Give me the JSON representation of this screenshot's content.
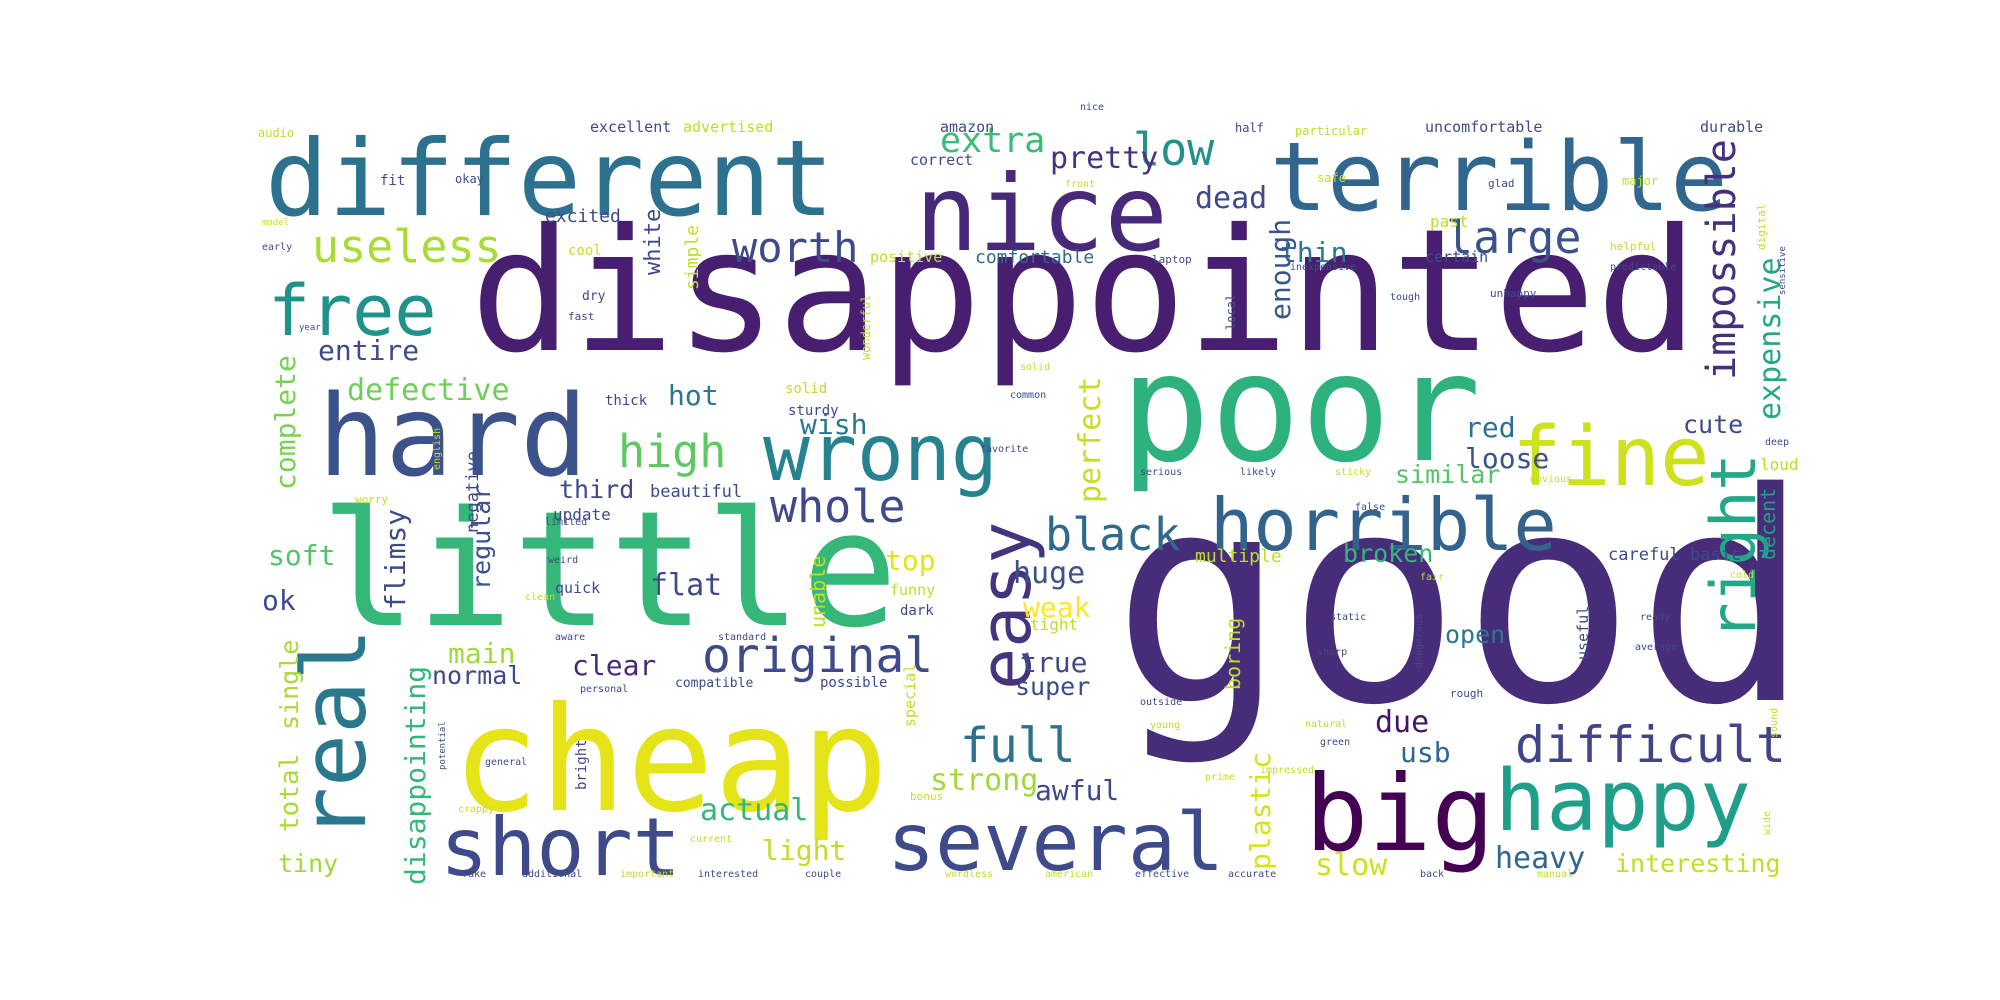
{
  "words": [
    {
      "text": "good",
      "color": "#472c7a"
    },
    {
      "text": "disappointed",
      "color": "#481f70"
    },
    {
      "text": "little",
      "color": "#35b779"
    },
    {
      "text": "poor",
      "color": "#2db27d"
    },
    {
      "text": "cheap",
      "color": "#e5e419"
    },
    {
      "text": "different",
      "color": "#2c728e"
    },
    {
      "text": "terrible",
      "color": "#31668e"
    },
    {
      "text": "nice",
      "color": "#482878"
    },
    {
      "text": "hard",
      "color": "#3b528b"
    },
    {
      "text": "big",
      "color": "#440154"
    },
    {
      "text": "happy",
      "color": "#1f9e89"
    },
    {
      "text": "several",
      "color": "#3e4a89"
    },
    {
      "text": "short",
      "color": "#3e4a89"
    },
    {
      "text": "real",
      "color": "#2a788e"
    },
    {
      "text": "wrong",
      "color": "#26828e"
    },
    {
      "text": "fine",
      "color": "#cde11d"
    },
    {
      "text": "horrible",
      "color": "#33638d"
    },
    {
      "text": "right",
      "color": "#22a884"
    },
    {
      "text": "easy",
      "color": "#46337e"
    },
    {
      "text": "free",
      "color": "#21918c"
    },
    {
      "text": "useless",
      "color": "#a8db34"
    },
    {
      "text": "worth",
      "color": "#3e4a89"
    },
    {
      "text": "large",
      "color": "#3b528b"
    },
    {
      "text": "low",
      "color": "#21918c"
    },
    {
      "text": "difficult",
      "color": "#414487"
    },
    {
      "text": "original",
      "color": "#3e4a89"
    },
    {
      "text": "black",
      "color": "#30698e"
    },
    {
      "text": "whole",
      "color": "#3e4a89"
    },
    {
      "text": "full",
      "color": "#2c728e"
    },
    {
      "text": "high",
      "color": "#5ec962"
    },
    {
      "text": "extra",
      "color": "#3bbb75"
    },
    {
      "text": "pretty",
      "color": "#46327e"
    },
    {
      "text": "dead",
      "color": "#3e4a89"
    },
    {
      "text": "thin",
      "color": "#2a788e"
    },
    {
      "text": "enough",
      "color": "#39558c"
    },
    {
      "text": "impossible",
      "color": "#46307e"
    },
    {
      "text": "expensive",
      "color": "#22a884"
    },
    {
      "text": "entire",
      "color": "#3e4a89"
    },
    {
      "text": "defective",
      "color": "#6ece58"
    },
    {
      "text": "complete",
      "color": "#7ad151"
    },
    {
      "text": "hot",
      "color": "#2a788e"
    },
    {
      "text": "wish",
      "color": "#2a788e"
    },
    {
      "text": "perfect",
      "color": "#c2df23"
    },
    {
      "text": "red",
      "color": "#2c728e"
    },
    {
      "text": "loose",
      "color": "#3b528b"
    },
    {
      "text": "similar",
      "color": "#52c569"
    },
    {
      "text": "regular",
      "color": "#3b528b"
    },
    {
      "text": "third",
      "color": "#3e4a89"
    },
    {
      "text": "huge",
      "color": "#3b528b"
    },
    {
      "text": "top",
      "color": "#e5e419"
    },
    {
      "text": "weak",
      "color": "#fde725"
    },
    {
      "text": "flat",
      "color": "#3e4a89"
    },
    {
      "text": "flimsy",
      "color": "#3e4a89"
    },
    {
      "text": "soft",
      "color": "#52c569"
    },
    {
      "text": "ok",
      "color": "#3e4a89"
    },
    {
      "text": "clear",
      "color": "#482878"
    },
    {
      "text": "main",
      "color": "#a0da39"
    },
    {
      "text": "normal",
      "color": "#3e4a89"
    },
    {
      "text": "true",
      "color": "#3e4a89"
    },
    {
      "text": "super",
      "color": "#3e4a89"
    },
    {
      "text": "due",
      "color": "#471365"
    },
    {
      "text": "usb",
      "color": "#31668e"
    },
    {
      "text": "strong",
      "color": "#a0da39"
    },
    {
      "text": "awful",
      "color": "#3e4a89"
    },
    {
      "text": "actual",
      "color": "#35b779"
    },
    {
      "text": "light",
      "color": "#bddf26"
    },
    {
      "text": "heavy",
      "color": "#31668e"
    },
    {
      "text": "slow",
      "color": "#cde11d"
    },
    {
      "text": "plastic",
      "color": "#d8e219"
    },
    {
      "text": "interesting",
      "color": "#bddf26"
    },
    {
      "text": "total",
      "color": "#a8db34"
    },
    {
      "text": "single",
      "color": "#a8db34"
    },
    {
      "text": "tiny",
      "color": "#a0da39"
    },
    {
      "text": "disappointing",
      "color": "#35b779"
    },
    {
      "text": "open",
      "color": "#2a788e"
    },
    {
      "text": "cute",
      "color": "#3e4a89"
    },
    {
      "text": "broken",
      "color": "#35b779"
    },
    {
      "text": "decent",
      "color": "#1f9e89"
    },
    {
      "text": "boring",
      "color": "#bddf26"
    },
    {
      "text": "white",
      "color": "#3e4a89"
    },
    {
      "text": "excited",
      "color": "#3e4a89"
    },
    {
      "text": "simple",
      "color": "#bddf26"
    },
    {
      "text": "comfortable",
      "color": "#31688e"
    },
    {
      "text": "advertised",
      "color": "#bddf26"
    },
    {
      "text": "excellent",
      "color": "#3e4a89"
    },
    {
      "text": "amazon",
      "color": "#3e4a89"
    },
    {
      "text": "correct",
      "color": "#3e4a89"
    },
    {
      "text": "uncomfortable",
      "color": "#3e4a89"
    },
    {
      "text": "durable",
      "color": "#3e4a89"
    },
    {
      "text": "past",
      "color": "#bddf26"
    },
    {
      "text": "certain",
      "color": "#3e4a89"
    },
    {
      "text": "careful",
      "color": "#3e4a89"
    },
    {
      "text": "basic",
      "color": "#3e4a89"
    },
    {
      "text": "multiple",
      "color": "#bddf26"
    },
    {
      "text": "negative",
      "color": "#3e4a89"
    },
    {
      "text": "beautiful",
      "color": "#3e4a89"
    },
    {
      "text": "update",
      "color": "#3e4a89"
    },
    {
      "text": "quick",
      "color": "#3e4a89"
    },
    {
      "text": "unable",
      "color": "#bddf26"
    },
    {
      "text": "funny",
      "color": "#bddf26"
    },
    {
      "text": "tight",
      "color": "#bddf26"
    },
    {
      "text": "dark",
      "color": "#3e4a89"
    },
    {
      "text": "compatible",
      "color": "#3e4a89"
    },
    {
      "text": "possible",
      "color": "#3e4a89"
    },
    {
      "text": "special",
      "color": "#bddf26"
    },
    {
      "text": "bright",
      "color": "#3e4a89"
    },
    {
      "text": "loud",
      "color": "#bddf26"
    },
    {
      "text": "useful",
      "color": "#3e4a89"
    },
    {
      "text": "positive",
      "color": "#bddf26"
    },
    {
      "text": "sturdy",
      "color": "#3e4a89"
    },
    {
      "text": "solid",
      "color": "#bddf26"
    },
    {
      "text": "thick",
      "color": "#3e4a89"
    },
    {
      "text": "cool",
      "color": "#bddf26"
    },
    {
      "text": "laptop",
      "color": "#3e4a89"
    },
    {
      "text": "local",
      "color": "#3e4a89"
    },
    {
      "text": "fit",
      "color": "#3e4a89"
    },
    {
      "text": "okay",
      "color": "#3e4a89"
    },
    {
      "text": "half",
      "color": "#3e4a89"
    },
    {
      "text": "particular",
      "color": "#bddf26"
    },
    {
      "text": "audio",
      "color": "#bddf26"
    },
    {
      "text": "major",
      "color": "#bddf26"
    },
    {
      "text": "glad",
      "color": "#3e4a89"
    },
    {
      "text": "fast",
      "color": "#3e4a89"
    },
    {
      "text": "safe",
      "color": "#bddf26"
    },
    {
      "text": "dry",
      "color": "#3e4a89"
    },
    {
      "text": "helpful",
      "color": "#bddf26"
    },
    {
      "text": "inexpensive",
      "color": "#3e4a89"
    },
    {
      "text": "predictable",
      "color": "#3e4a89"
    },
    {
      "text": "unhappy",
      "color": "#3e4a89"
    },
    {
      "text": "wonderful",
      "color": "#bddf26"
    },
    {
      "text": "early",
      "color": "#3e4a89"
    },
    {
      "text": "likely",
      "color": "#3e4a89"
    },
    {
      "text": "serious",
      "color": "#3e4a89"
    },
    {
      "text": "sticky",
      "color": "#bddf26"
    },
    {
      "text": "favorite",
      "color": "#3e4a89"
    },
    {
      "text": "common",
      "color": "#3e4a89"
    },
    {
      "text": "english",
      "color": "#bddf26"
    },
    {
      "text": "worry",
      "color": "#bddf26"
    },
    {
      "text": "limited",
      "color": "#3e4a89"
    },
    {
      "text": "weird",
      "color": "#3e4a89"
    },
    {
      "text": "false",
      "color": "#3e4a89"
    },
    {
      "text": "obvious",
      "color": "#bddf26"
    },
    {
      "text": "fair",
      "color": "#bddf26"
    },
    {
      "text": "solid",
      "color": "#bddf26"
    },
    {
      "text": "standard",
      "color": "#3e4a89"
    },
    {
      "text": "static",
      "color": "#3e4a89"
    },
    {
      "text": "sharp",
      "color": "#3e4a89"
    },
    {
      "text": "dangerous",
      "color": "#3e4a89"
    },
    {
      "text": "rough",
      "color": "#3e4a89"
    },
    {
      "text": "ready",
      "color": "#3e4a89"
    },
    {
      "text": "average",
      "color": "#3e4a89"
    },
    {
      "text": "outside",
      "color": "#3e4a89"
    },
    {
      "text": "young",
      "color": "#bddf26"
    },
    {
      "text": "natural",
      "color": "#bddf26"
    },
    {
      "text": "green",
      "color": "#3e4a89"
    },
    {
      "text": "impressed",
      "color": "#bddf26"
    },
    {
      "text": "prime",
      "color": "#bddf26"
    },
    {
      "text": "bonus",
      "color": "#bddf26"
    },
    {
      "text": "general",
      "color": "#3e4a89"
    },
    {
      "text": "potential",
      "color": "#3e4a89"
    },
    {
      "text": "crappy",
      "color": "#bddf26"
    },
    {
      "text": "current",
      "color": "#bddf26"
    },
    {
      "text": "personal",
      "color": "#3e4a89"
    },
    {
      "text": "fake",
      "color": "#3e4a89"
    },
    {
      "text": "additional",
      "color": "#3e4a89"
    },
    {
      "text": "important",
      "color": "#bddf26"
    },
    {
      "text": "interested",
      "color": "#3e4a89"
    },
    {
      "text": "couple",
      "color": "#3e4a89"
    },
    {
      "text": "wordless",
      "color": "#bddf26"
    },
    {
      "text": "american",
      "color": "#bddf26"
    },
    {
      "text": "effective",
      "color": "#3e4a89"
    },
    {
      "text": "accurate",
      "color": "#3e4a89"
    },
    {
      "text": "back",
      "color": "#3e4a89"
    },
    {
      "text": "manual",
      "color": "#bddf26"
    },
    {
      "text": "wide",
      "color": "#bddf26"
    },
    {
      "text": "sound",
      "color": "#bddf26"
    },
    {
      "text": "deep",
      "color": "#3e4a89"
    },
    {
      "text": "digital",
      "color": "#bddf26"
    },
    {
      "text": "sensitive",
      "color": "#3e4a89"
    },
    {
      "text": "cold",
      "color": "#bddf26"
    },
    {
      "text": "clean",
      "color": "#bddf26"
    },
    {
      "text": "aware",
      "color": "#3e4a89"
    },
    {
      "text": "tough",
      "color": "#3e4a89"
    },
    {
      "text": "model",
      "color": "#bddf26"
    },
    {
      "text": "year",
      "color": "#3e4a89"
    },
    {
      "text": "front",
      "color": "#bddf26"
    },
    {
      "text": "nice",
      "color": "#3e4a89"
    }
  ]
}
